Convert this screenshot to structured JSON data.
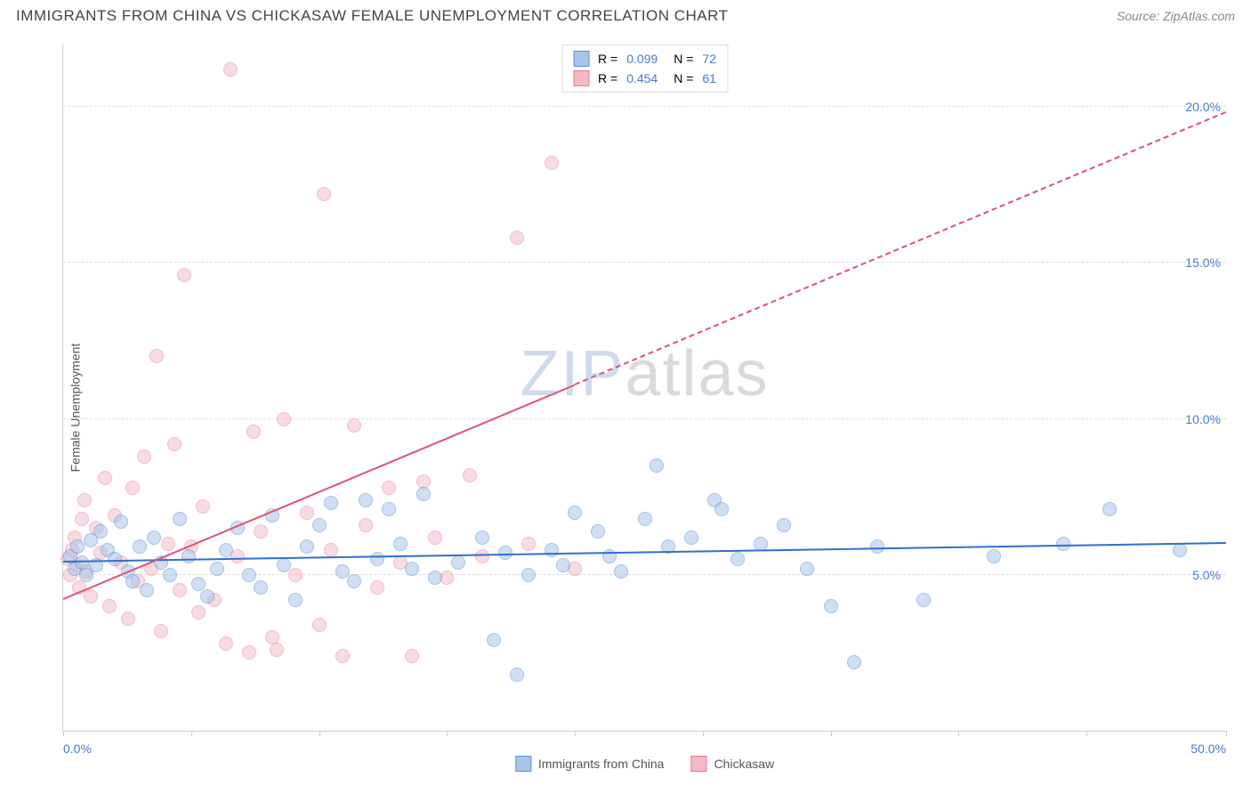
{
  "header": {
    "title": "IMMIGRANTS FROM CHINA VS CHICKASAW FEMALE UNEMPLOYMENT CORRELATION CHART",
    "source": "Source: ZipAtlas.com"
  },
  "chart": {
    "type": "scatter",
    "ylabel": "Female Unemployment",
    "xlim": [
      0,
      50
    ],
    "ylim": [
      0,
      22
    ],
    "xtick_positions": [
      0,
      5.5,
      11,
      16.5,
      22,
      27.5,
      33,
      38.5,
      44,
      50
    ],
    "xtick_labels_shown": {
      "0": "0.0%",
      "50": "50.0%"
    },
    "ytick_positions": [
      5,
      10,
      15,
      20
    ],
    "ytick_labels": [
      "5.0%",
      "10.0%",
      "15.0%",
      "20.0%"
    ],
    "axis_label_color": "#4a7bd0",
    "grid_color": "#dddddd",
    "background_color": "#ffffff",
    "watermark": {
      "part1": "ZIP",
      "part2": "atlas"
    },
    "series": [
      {
        "name": "Immigrants from China",
        "color_fill": "#a8c5ec",
        "color_stroke": "#5a8fd6",
        "marker_radius": 8,
        "fill_opacity": 0.55,
        "trend": {
          "x1": 0,
          "y1": 5.4,
          "x2": 50,
          "y2": 6.0,
          "color": "#2f6fd0",
          "dash": "solid",
          "width": 2
        },
        "R": "0.099",
        "N": "72",
        "points": [
          [
            0.3,
            5.6
          ],
          [
            0.5,
            5.2
          ],
          [
            0.6,
            5.9
          ],
          [
            0.8,
            5.4
          ],
          [
            1.0,
            5.0
          ],
          [
            1.2,
            6.1
          ],
          [
            1.4,
            5.3
          ],
          [
            1.6,
            6.4
          ],
          [
            1.9,
            5.8
          ],
          [
            2.2,
            5.5
          ],
          [
            2.5,
            6.7
          ],
          [
            2.8,
            5.1
          ],
          [
            3.0,
            4.8
          ],
          [
            3.3,
            5.9
          ],
          [
            3.6,
            4.5
          ],
          [
            3.9,
            6.2
          ],
          [
            4.2,
            5.4
          ],
          [
            4.6,
            5.0
          ],
          [
            5.0,
            6.8
          ],
          [
            5.4,
            5.6
          ],
          [
            5.8,
            4.7
          ],
          [
            6.2,
            4.3
          ],
          [
            6.6,
            5.2
          ],
          [
            7.0,
            5.8
          ],
          [
            7.5,
            6.5
          ],
          [
            8.0,
            5.0
          ],
          [
            8.5,
            4.6
          ],
          [
            9.0,
            6.9
          ],
          [
            9.5,
            5.3
          ],
          [
            10.0,
            4.2
          ],
          [
            10.5,
            5.9
          ],
          [
            11.0,
            6.6
          ],
          [
            11.5,
            7.3
          ],
          [
            12.0,
            5.1
          ],
          [
            12.5,
            4.8
          ],
          [
            13.0,
            7.4
          ],
          [
            13.5,
            5.5
          ],
          [
            14.0,
            7.1
          ],
          [
            14.5,
            6.0
          ],
          [
            15.0,
            5.2
          ],
          [
            15.5,
            7.6
          ],
          [
            16.0,
            4.9
          ],
          [
            17.0,
            5.4
          ],
          [
            18.0,
            6.2
          ],
          [
            18.5,
            2.9
          ],
          [
            19.0,
            5.7
          ],
          [
            19.5,
            1.8
          ],
          [
            20.0,
            5.0
          ],
          [
            21.0,
            5.8
          ],
          [
            21.5,
            5.3
          ],
          [
            22.0,
            7.0
          ],
          [
            23.0,
            6.4
          ],
          [
            23.5,
            5.6
          ],
          [
            24.0,
            5.1
          ],
          [
            25.0,
            6.8
          ],
          [
            25.5,
            8.5
          ],
          [
            26.0,
            5.9
          ],
          [
            27.0,
            6.2
          ],
          [
            28.0,
            7.4
          ],
          [
            28.3,
            7.1
          ],
          [
            29.0,
            5.5
          ],
          [
            30.0,
            6.0
          ],
          [
            31.0,
            6.6
          ],
          [
            32.0,
            5.2
          ],
          [
            33.0,
            4.0
          ],
          [
            34.0,
            2.2
          ],
          [
            35.0,
            5.9
          ],
          [
            37.0,
            4.2
          ],
          [
            40.0,
            5.6
          ],
          [
            43.0,
            6.0
          ],
          [
            45.0,
            7.1
          ],
          [
            48.0,
            5.8
          ]
        ]
      },
      {
        "name": "Chickasaw",
        "color_fill": "#f5b8c5",
        "color_stroke": "#e77a92",
        "marker_radius": 8,
        "fill_opacity": 0.5,
        "trend": {
          "x1": 0,
          "y1": 4.2,
          "x2": 50,
          "y2": 19.8,
          "color": "#e04f72",
          "dash_solid_until_x": 22,
          "width": 2
        },
        "R": "0.454",
        "N": "61",
        "points": [
          [
            0.2,
            5.5
          ],
          [
            0.3,
            5.0
          ],
          [
            0.4,
            5.8
          ],
          [
            0.5,
            6.2
          ],
          [
            0.6,
            5.3
          ],
          [
            0.7,
            4.6
          ],
          [
            0.8,
            6.8
          ],
          [
            0.9,
            7.4
          ],
          [
            1.0,
            5.1
          ],
          [
            1.2,
            4.3
          ],
          [
            1.4,
            6.5
          ],
          [
            1.6,
            5.7
          ],
          [
            1.8,
            8.1
          ],
          [
            2.0,
            4.0
          ],
          [
            2.2,
            6.9
          ],
          [
            2.5,
            5.4
          ],
          [
            2.8,
            3.6
          ],
          [
            3.0,
            7.8
          ],
          [
            3.2,
            4.8
          ],
          [
            3.5,
            8.8
          ],
          [
            3.8,
            5.2
          ],
          [
            4.0,
            12.0
          ],
          [
            4.2,
            3.2
          ],
          [
            4.5,
            6.0
          ],
          [
            4.8,
            9.2
          ],
          [
            5.0,
            4.5
          ],
          [
            5.2,
            14.6
          ],
          [
            5.5,
            5.9
          ],
          [
            5.8,
            3.8
          ],
          [
            6.0,
            7.2
          ],
          [
            6.5,
            4.2
          ],
          [
            7.0,
            2.8
          ],
          [
            7.2,
            21.2
          ],
          [
            7.5,
            5.6
          ],
          [
            8.0,
            2.5
          ],
          [
            8.2,
            9.6
          ],
          [
            8.5,
            6.4
          ],
          [
            9.0,
            3.0
          ],
          [
            9.2,
            2.6
          ],
          [
            9.5,
            10.0
          ],
          [
            10.0,
            5.0
          ],
          [
            10.5,
            7.0
          ],
          [
            11.0,
            3.4
          ],
          [
            11.2,
            17.2
          ],
          [
            11.5,
            5.8
          ],
          [
            12.0,
            2.4
          ],
          [
            12.5,
            9.8
          ],
          [
            13.0,
            6.6
          ],
          [
            13.5,
            4.6
          ],
          [
            14.0,
            7.8
          ],
          [
            14.5,
            5.4
          ],
          [
            15.0,
            2.4
          ],
          [
            15.5,
            8.0
          ],
          [
            16.0,
            6.2
          ],
          [
            16.5,
            4.9
          ],
          [
            17.5,
            8.2
          ],
          [
            18.0,
            5.6
          ],
          [
            19.5,
            15.8
          ],
          [
            20.0,
            6.0
          ],
          [
            21.0,
            18.2
          ],
          [
            22.0,
            5.2
          ]
        ]
      }
    ],
    "legend_bottom": [
      {
        "label": "Immigrants from China",
        "fill": "#a8c5ec",
        "stroke": "#5a8fd6"
      },
      {
        "label": "Chickasaw",
        "fill": "#f5b8c5",
        "stroke": "#e77a92"
      }
    ]
  }
}
